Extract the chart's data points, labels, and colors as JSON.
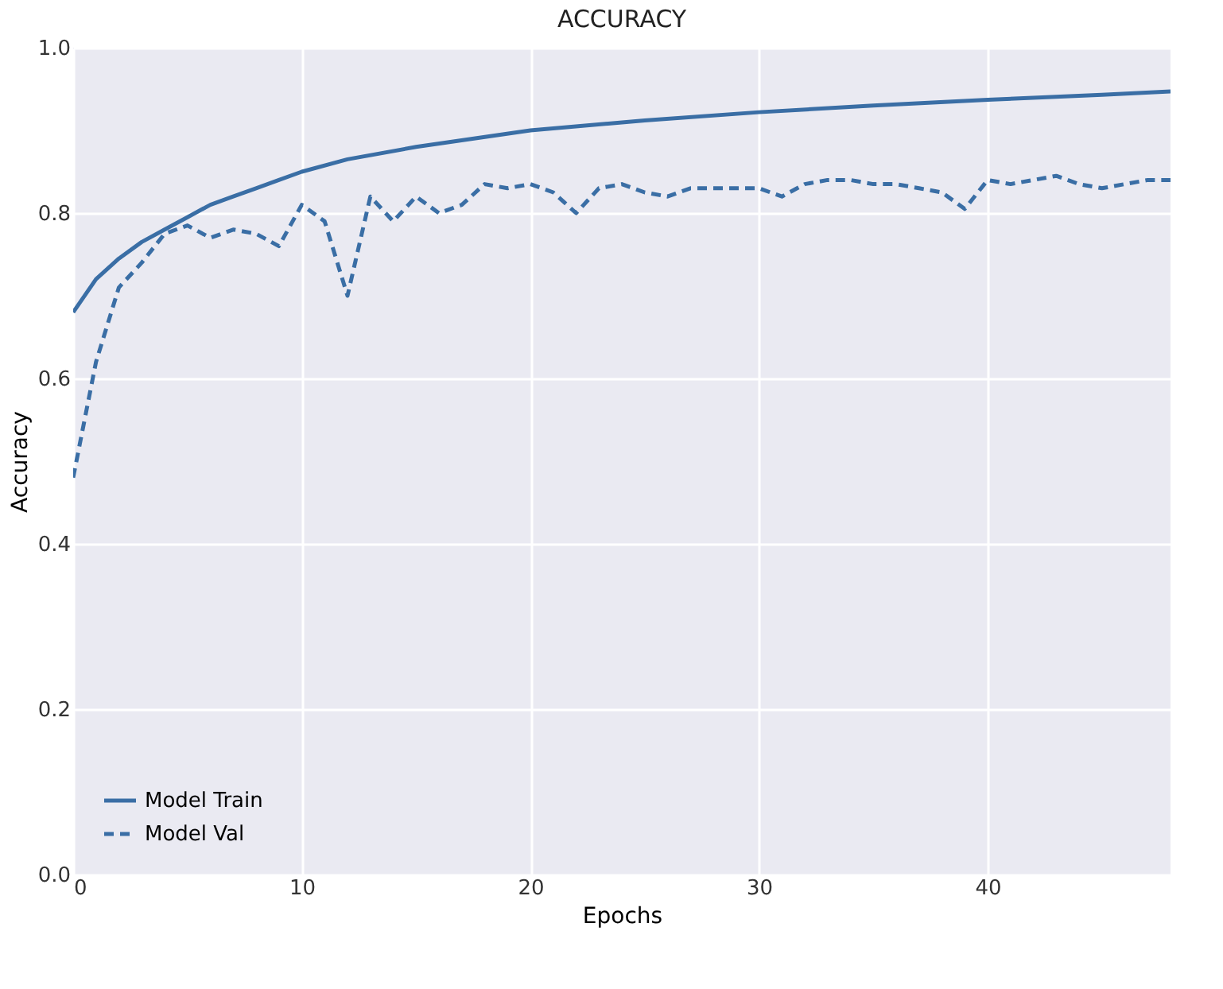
{
  "chart_data": {
    "type": "line",
    "title": "ACCURACY",
    "xlabel": "Epochs",
    "ylabel": "Accuracy",
    "xlim": [
      0,
      48
    ],
    "xticks": [
      0,
      10,
      20,
      30,
      40
    ],
    "ylim": [
      0,
      1
    ],
    "yticks": [
      {
        "value": 0,
        "label": "0.0"
      },
      0.2,
      0.4,
      0.6,
      0.8,
      {
        "value": 1,
        "label": "1.0"
      }
    ],
    "grid": true,
    "legend": "bottom left",
    "series": [
      {
        "name": "Model Train",
        "color": "#3a6ea5",
        "line_style": "solid",
        "x": [
          0,
          1,
          2,
          3,
          4,
          5,
          6,
          7,
          8,
          9,
          10,
          12,
          15,
          20,
          25,
          30,
          35,
          40,
          45,
          48
        ],
        "values": [
          0.68,
          0.72,
          0.745,
          0.765,
          0.78,
          0.795,
          0.81,
          0.82,
          0.83,
          0.84,
          0.85,
          0.865,
          0.88,
          0.9,
          0.912,
          0.922,
          0.93,
          0.937,
          0.943,
          0.947
        ]
      },
      {
        "name": "Model Val",
        "color": "#3a6ea5",
        "line_style": "dashed",
        "x": [
          0,
          1,
          2,
          3,
          4,
          5,
          6,
          7,
          8,
          9,
          10,
          11,
          12,
          13,
          14,
          15,
          16,
          17,
          18,
          19,
          20,
          21,
          22,
          23,
          24,
          25,
          26,
          27,
          28,
          29,
          30,
          31,
          32,
          33,
          34,
          35,
          36,
          37,
          38,
          39,
          40,
          41,
          42,
          43,
          44,
          45,
          46,
          47,
          48
        ],
        "values": [
          0.48,
          0.62,
          0.71,
          0.74,
          0.775,
          0.785,
          0.77,
          0.78,
          0.775,
          0.76,
          0.81,
          0.79,
          0.7,
          0.82,
          0.79,
          0.82,
          0.8,
          0.81,
          0.835,
          0.83,
          0.835,
          0.825,
          0.8,
          0.83,
          0.835,
          0.825,
          0.82,
          0.83,
          0.83,
          0.83,
          0.83,
          0.82,
          0.835,
          0.84,
          0.84,
          0.835,
          0.835,
          0.83,
          0.825,
          0.805,
          0.84,
          0.835,
          0.84,
          0.845,
          0.835,
          0.83,
          0.835,
          0.84,
          0.84
        ]
      }
    ]
  }
}
